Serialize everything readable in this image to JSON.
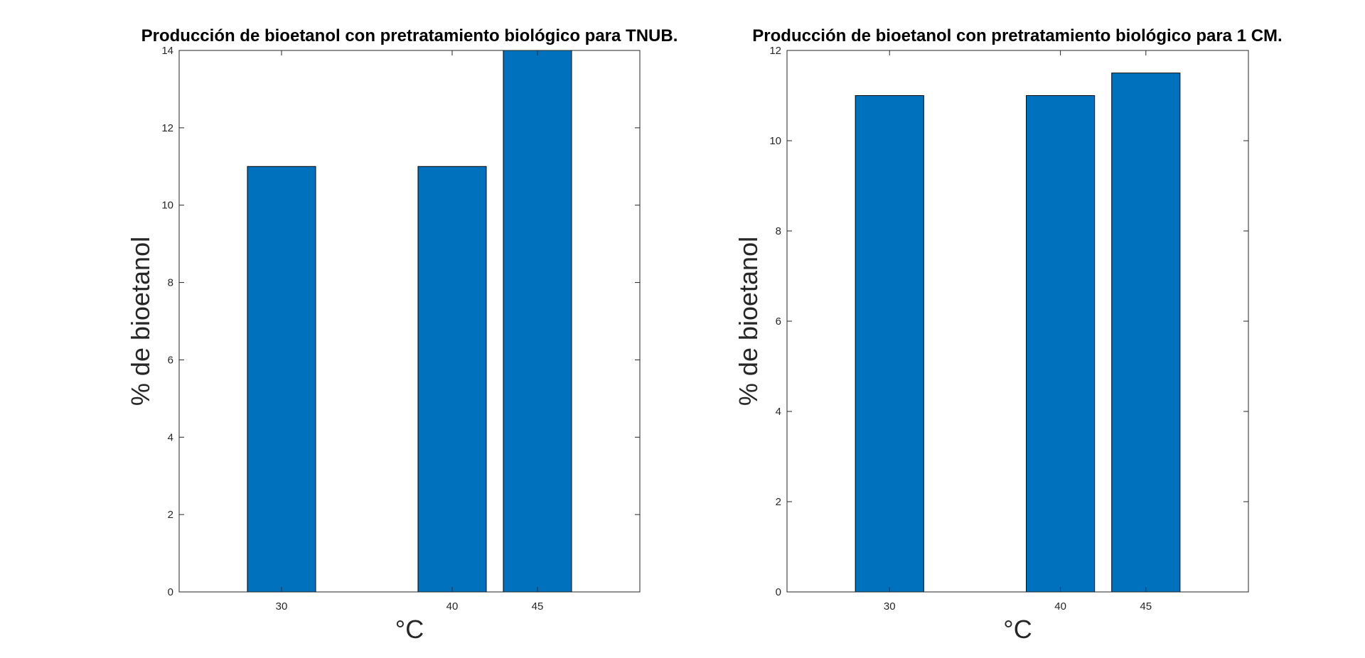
{
  "chart_data": [
    {
      "type": "bar",
      "title": "Producción de bioetanol con pretratamiento biológico para TNUB.",
      "xlabel": "°C",
      "ylabel": "% de bioetanol",
      "x": [
        30,
        40,
        45
      ],
      "x_tick_labels": [
        "30",
        "40",
        "45"
      ],
      "values": [
        11,
        11,
        14
      ],
      "xlim": [
        24,
        51
      ],
      "ylim": [
        0,
        14
      ],
      "y_ticks": [
        0,
        2,
        4,
        6,
        8,
        10,
        12,
        14
      ],
      "bar_color": "#0072BD",
      "grid": false,
      "legend": "none"
    },
    {
      "type": "bar",
      "title": "Producción de bioetanol con pretratamiento biológico para 1 CM.",
      "xlabel": "°C",
      "ylabel": "% de bioetanol",
      "x": [
        30,
        40,
        45
      ],
      "x_tick_labels": [
        "30",
        "40",
        "45"
      ],
      "values": [
        11,
        11,
        11.5
      ],
      "xlim": [
        24,
        51
      ],
      "ylim": [
        0,
        12
      ],
      "y_ticks": [
        0,
        2,
        4,
        6,
        8,
        10,
        12
      ],
      "bar_color": "#0072BD",
      "grid": false,
      "legend": "none"
    }
  ]
}
